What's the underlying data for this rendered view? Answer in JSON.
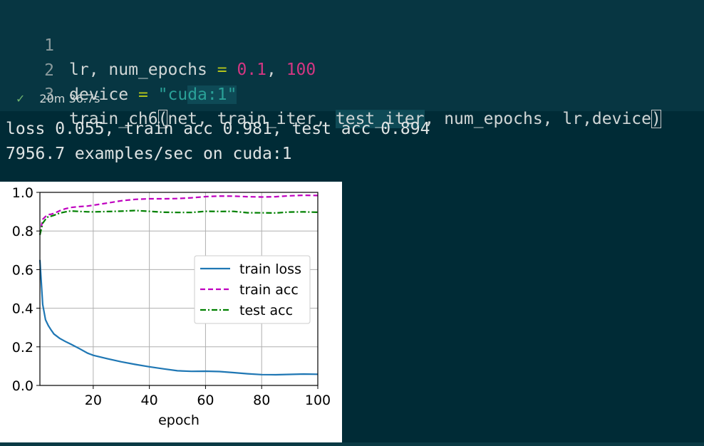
{
  "code": {
    "line1": {
      "num": "1",
      "a": "lr, num_epochs ",
      "eq": "=",
      "b": " ",
      "n1": "0.1",
      "c": ", ",
      "n2": "100"
    },
    "line2": {
      "num": "2",
      "a": "device ",
      "eq": "=",
      "b": " ",
      "s1": "\"cu",
      "s2": "da:1\""
    },
    "line3": {
      "num": "3",
      "a": "train_ch6",
      "p1": "(",
      "b": "net, train_iter, ",
      "hl": "test_iter",
      "c": ", num_epochs, lr,device",
      "p2": ")"
    }
  },
  "status": {
    "check": "✓",
    "time": "20m 36.7s"
  },
  "output": {
    "line1": "loss 0.055, train acc 0.981, test acc 0.894",
    "line2": "7956.7 examples/sec on cuda:1"
  },
  "chart_data": {
    "type": "line",
    "xlabel": "epoch",
    "ylabel": "",
    "xlim": [
      1,
      100
    ],
    "ylim": [
      0,
      1.0
    ],
    "xticks": [
      20,
      40,
      60,
      80,
      100
    ],
    "yticks": [
      0.0,
      0.2,
      0.4,
      0.6,
      0.8,
      1.0
    ],
    "ytick_labels": [
      "0.0",
      "0.2",
      "0.4",
      "0.6",
      "0.8",
      "1.0"
    ],
    "grid": true,
    "legend_position": "center-right",
    "series": [
      {
        "name": "train loss",
        "color": "#1f77b4",
        "style": "solid",
        "x": [
          1,
          2,
          3,
          4,
          5,
          6,
          8,
          10,
          12,
          15,
          18,
          20,
          25,
          30,
          35,
          40,
          45,
          50,
          55,
          60,
          65,
          70,
          75,
          80,
          85,
          90,
          95,
          100
        ],
        "y": [
          0.65,
          0.42,
          0.34,
          0.31,
          0.29,
          0.27,
          0.245,
          0.225,
          0.21,
          0.19,
          0.17,
          0.16,
          0.14,
          0.12,
          0.105,
          0.095,
          0.088,
          0.08,
          0.075,
          0.072,
          0.068,
          0.064,
          0.062,
          0.06,
          0.058,
          0.056,
          0.055,
          0.055
        ]
      },
      {
        "name": "train acc",
        "color": "#bf00bf",
        "style": "dashed",
        "x": [
          1,
          2,
          3,
          4,
          5,
          6,
          8,
          10,
          12,
          15,
          18,
          20,
          25,
          30,
          35,
          40,
          45,
          50,
          55,
          60,
          65,
          70,
          75,
          80,
          85,
          90,
          95,
          100
        ],
        "y": [
          0.78,
          0.86,
          0.875,
          0.885,
          0.89,
          0.895,
          0.905,
          0.912,
          0.918,
          0.925,
          0.932,
          0.937,
          0.946,
          0.954,
          0.96,
          0.965,
          0.969,
          0.972,
          0.974,
          0.976,
          0.977,
          0.978,
          0.979,
          0.98,
          0.98,
          0.981,
          0.981,
          0.981
        ]
      },
      {
        "name": "test acc",
        "color": "#008000",
        "style": "dashdot",
        "x": [
          1,
          2,
          3,
          4,
          5,
          6,
          8,
          10,
          12,
          15,
          18,
          20,
          25,
          30,
          35,
          40,
          45,
          50,
          55,
          60,
          65,
          70,
          75,
          80,
          85,
          90,
          95,
          100
        ],
        "y": [
          0.78,
          0.84,
          0.86,
          0.875,
          0.88,
          0.885,
          0.893,
          0.896,
          0.9,
          0.9,
          0.902,
          0.903,
          0.902,
          0.9,
          0.902,
          0.9,
          0.899,
          0.9,
          0.898,
          0.9,
          0.897,
          0.899,
          0.896,
          0.898,
          0.896,
          0.897,
          0.895,
          0.894
        ]
      }
    ]
  }
}
